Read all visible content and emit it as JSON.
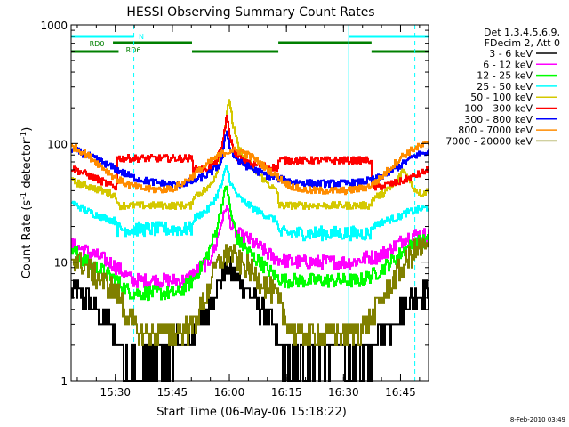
{
  "chart_data": {
    "type": "line",
    "title": "HESSI Observing Summary Count Rates",
    "xlabel": "Start Time (06-May-06 15:18:22)",
    "ylabel": "Count Rate (s⁻¹ detector⁻¹)",
    "x_units": "minutes after 15:18:22",
    "xlim": [
      0,
      94
    ],
    "ylim": [
      1,
      1000
    ],
    "y_scale": "log",
    "x_ticks": [
      {
        "t": 11.63,
        "label": "15:30"
      },
      {
        "t": 26.63,
        "label": "15:45"
      },
      {
        "t": 41.63,
        "label": "16:00"
      },
      {
        "t": 56.63,
        "label": "16:15"
      },
      {
        "t": 71.63,
        "label": "16:30"
      },
      {
        "t": 86.63,
        "label": "16:45"
      }
    ],
    "y_ticks": [
      {
        "v": 1,
        "label": "1"
      },
      {
        "v": 10,
        "label": "10"
      },
      {
        "v": 100,
        "label": "100"
      },
      {
        "v": 1000,
        "label": "1000"
      }
    ],
    "legend_header": [
      "Det 1,3,4,5,6,9,",
      "FDecim 2, Att 0"
    ],
    "legend_position": "right",
    "footer_stamp": "8-Feb-2010 03:49",
    "flags": [
      {
        "label": "N",
        "color": "#00ffff",
        "segments": [
          [
            0,
            16.5
          ],
          [
            73,
            94
          ]
        ]
      },
      {
        "label": "RD0",
        "color": "#008000",
        "segments": [
          [
            11,
            31.8
          ],
          [
            54.5,
            79
          ]
        ]
      },
      {
        "label": "RD6",
        "color": "#008000",
        "segments": [
          [
            0,
            12.5
          ],
          [
            31.8,
            54.5
          ],
          [
            79,
            94
          ]
        ]
      }
    ],
    "markers": [
      {
        "t": 16.5,
        "color": "#00ffff",
        "style": "dashed"
      },
      {
        "t": 73,
        "color": "#00ffff",
        "style": "solid"
      },
      {
        "t": 90.4,
        "color": "#00ffff",
        "style": "dashed"
      }
    ],
    "series": [
      {
        "name": "3 - 6 keV",
        "color": "#000000",
        "x": [
          0,
          5,
          10,
          13,
          16,
          20,
          24,
          28,
          32,
          36,
          39,
          41,
          44,
          48,
          52,
          56,
          60,
          64,
          68,
          72,
          76,
          80,
          84,
          88,
          90,
          92,
          94
        ],
        "y": [
          6,
          4.5,
          3,
          1.8,
          1.3,
          1.4,
          1.5,
          2,
          2.5,
          4,
          7,
          9,
          7,
          5,
          3.5,
          1.5,
          1.3,
          1.8,
          1.8,
          1.6,
          1.3,
          2,
          3,
          4.5,
          5,
          5.5,
          5.5
        ]
      },
      {
        "name": "6 - 12 keV",
        "color": "#ff00ff",
        "x": [
          0,
          5,
          10,
          13,
          16,
          20,
          24,
          28,
          30,
          32,
          36,
          38,
          39.5,
          40.8,
          42,
          44,
          46,
          50,
          53,
          55,
          58,
          62,
          66,
          70,
          74,
          78,
          80,
          84,
          88,
          90,
          92,
          94
        ],
        "y": [
          14,
          12,
          10,
          8.5,
          7,
          7,
          7,
          7,
          7,
          8,
          10,
          14,
          22,
          30,
          20,
          17,
          16,
          13,
          11,
          10.5,
          10,
          10,
          10,
          10,
          10,
          11,
          11,
          13,
          16,
          17,
          17,
          17
        ]
      },
      {
        "name": "12 - 25 keV",
        "color": "#00ff00",
        "x": [
          0,
          4,
          8,
          12,
          14,
          16,
          20,
          24,
          28,
          32,
          34,
          36,
          38,
          39.5,
          40.8,
          42,
          44,
          48,
          52,
          54,
          56,
          60,
          64,
          68,
          72,
          76,
          80,
          84,
          88,
          92,
          94
        ],
        "y": [
          13,
          10,
          8.5,
          7,
          6,
          5.5,
          5.5,
          5.5,
          5.5,
          7,
          9,
          12,
          18,
          30,
          45,
          25,
          15,
          11,
          8.5,
          7.5,
          7,
          7,
          7,
          7,
          7,
          7,
          8,
          10,
          13,
          15,
          15
        ]
      },
      {
        "name": "25 - 50 keV",
        "color": "#00ffff",
        "x": [
          0,
          4,
          8,
          11.9,
          12,
          16,
          20,
          24,
          28,
          31.8,
          32,
          36,
          38,
          39.5,
          40.8,
          42,
          44,
          48,
          52,
          54.4,
          54.5,
          58,
          62,
          66,
          70,
          74,
          78,
          78.9,
          79,
          82,
          86,
          88,
          90,
          92,
          94
        ],
        "y": [
          32,
          27,
          24,
          22,
          19,
          19,
          19,
          19,
          19,
          19,
          23,
          28,
          35,
          45,
          65,
          45,
          35,
          28,
          24,
          22,
          17.5,
          17.5,
          17.5,
          17.5,
          17.5,
          17.5,
          17.5,
          17.5,
          20,
          22,
          24,
          26,
          27,
          28,
          29
        ]
      },
      {
        "name": "50 - 100 keV",
        "color": "#d4c800",
        "x": [
          0,
          4,
          8,
          11.9,
          12,
          16,
          20,
          24,
          28,
          31.8,
          32,
          36,
          38,
          39.5,
          40.5,
          41.6,
          42.5,
          44,
          48,
          52,
          54.4,
          54.5,
          58,
          62,
          66,
          70,
          74,
          78,
          78.9,
          79,
          82,
          84,
          86,
          87,
          88,
          90,
          92,
          94
        ],
        "y": [
          48,
          44,
          40,
          36,
          30,
          30,
          30,
          30,
          30,
          30,
          36,
          42,
          55,
          85,
          150,
          240,
          140,
          90,
          60,
          45,
          38,
          30,
          30,
          30,
          30,
          30,
          30,
          30,
          30,
          34,
          38,
          42,
          50,
          60,
          55,
          42,
          38,
          40
        ]
      },
      {
        "name": "100 - 300 keV",
        "color": "#ff0000",
        "x": [
          0,
          4,
          8,
          11.9,
          12,
          16,
          20,
          24,
          28,
          31.8,
          32,
          36,
          38,
          39.5,
          40.8,
          41.8,
          43,
          46,
          50,
          54.4,
          54.5,
          58,
          62,
          66,
          70,
          74,
          78,
          78.9,
          79,
          82,
          86,
          88,
          90,
          92,
          94
        ],
        "y": [
          62,
          55,
          48,
          42,
          75,
          75,
          75,
          75,
          75,
          75,
          60,
          62,
          70,
          90,
          170,
          110,
          80,
          68,
          65,
          62,
          72,
          72,
          72,
          72,
          72,
          72,
          72,
          72,
          42,
          44,
          47,
          50,
          53,
          56,
          60
        ]
      },
      {
        "name": "300 - 800 keV",
        "color": "#0000ff",
        "x": [
          0,
          4,
          8,
          12,
          16,
          20,
          24,
          28,
          32,
          36,
          38,
          39.5,
          40.8,
          42,
          44,
          48,
          52,
          56,
          60,
          64,
          68,
          72,
          76,
          80,
          84,
          88,
          90,
          92,
          94
        ],
        "y": [
          90,
          80,
          70,
          60,
          52,
          48,
          46,
          45,
          48,
          55,
          62,
          70,
          130,
          85,
          70,
          60,
          53,
          49,
          47,
          46,
          46,
          46,
          47,
          50,
          58,
          70,
          78,
          82,
          85
        ]
      },
      {
        "name": "800 - 7000 keV",
        "color": "#ff8c00",
        "x": [
          0,
          3,
          6,
          9,
          12,
          15,
          18,
          21,
          24,
          27,
          30,
          33,
          36,
          39,
          42,
          45,
          48,
          51,
          54,
          57,
          60,
          63,
          66,
          69,
          72,
          75,
          78,
          81,
          84,
          87,
          90,
          93,
          94
        ],
        "y": [
          95,
          85,
          72,
          60,
          50,
          45,
          42,
          41,
          41,
          42,
          48,
          57,
          68,
          80,
          88,
          85,
          75,
          63,
          53,
          45,
          41,
          40,
          40,
          40,
          40,
          41,
          43,
          50,
          63,
          78,
          90,
          98,
          100
        ]
      },
      {
        "name": "7000 - 20000 keV",
        "color": "#808000",
        "x": [
          0,
          4,
          8,
          12,
          16,
          18,
          20,
          24,
          28,
          32,
          34,
          36,
          38,
          40,
          42,
          44,
          46,
          50,
          54,
          56,
          58,
          62,
          66,
          70,
          74,
          78,
          80,
          82,
          84,
          86,
          88,
          90,
          92,
          94
        ],
        "y": [
          11,
          9,
          7,
          5.5,
          3,
          2.5,
          2.5,
          2.5,
          2.5,
          3,
          4,
          6,
          9,
          11,
          12,
          10,
          9,
          7,
          5,
          3.5,
          2.5,
          2.5,
          2.5,
          2.5,
          2.5,
          3,
          4,
          5,
          6.5,
          8,
          10,
          12,
          13,
          13
        ]
      }
    ]
  }
}
